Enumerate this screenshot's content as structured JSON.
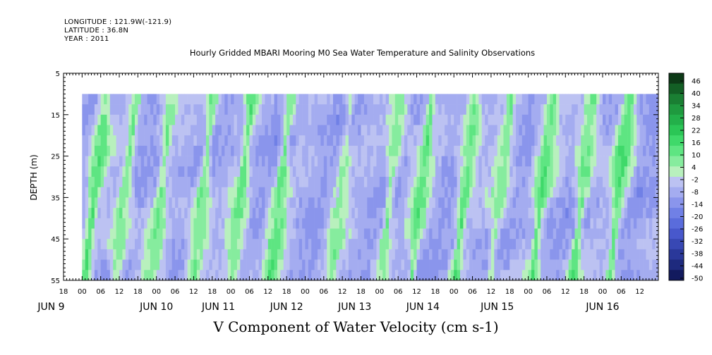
{
  "header": {
    "longitude": "LONGITUDE : 121.9W(-121.9)",
    "latitude": "LATITUDE : 36.8N",
    "year": "YEAR : 2011"
  },
  "chart_data": {
    "type": "heatmap",
    "title": "Hourly Gridded MBARI Mooring M0 Sea Water Temperature and Salinity Observations",
    "xlabel": "V Component of Water Velocity (cm s-1)",
    "ylabel": "DEPTH (m)",
    "ylim": [
      55,
      5
    ],
    "y_ticks": [
      5,
      15,
      25,
      35,
      45,
      55
    ],
    "data_depth_range": [
      10,
      55
    ],
    "x_start": "JUN 8 18:00",
    "x_end": "JUN 16 18:00",
    "data_time_start": "JUN 9 00:00",
    "hour_tick_labels": [
      "18",
      "00",
      "06",
      "12",
      "18",
      "00",
      "06",
      "12",
      "18",
      "00",
      "06",
      "12",
      "18",
      "00",
      "06",
      "12",
      "18",
      "00",
      "06",
      "12",
      "18",
      "00",
      "06",
      "12",
      "18",
      "00",
      "06",
      "12",
      "18",
      "00",
      "06",
      "12"
    ],
    "day_labels": [
      {
        "label": "JUN  9",
        "day": 9
      },
      {
        "label": "JUN 10",
        "day": 10
      },
      {
        "label": "JUN 11",
        "day": 11
      },
      {
        "label": "JUN 12",
        "day": 12
      },
      {
        "label": "JUN 13",
        "day": 13
      },
      {
        "label": "JUN 14",
        "day": 14
      },
      {
        "label": "JUN 15",
        "day": 15
      },
      {
        "label": "JUN 16",
        "day": 16
      }
    ],
    "colorbar": {
      "labels": [
        "46",
        "40",
        "34",
        "28",
        "22",
        "16",
        "10",
        "4",
        "-2",
        "-8",
        "-14",
        "-20",
        "-26",
        "-32",
        "-38",
        "-44",
        "-50"
      ],
      "colors": [
        "#0d3a17",
        "#135f25",
        "#1a7f33",
        "#1f9a3f",
        "#23b04a",
        "#2bc656",
        "#3fd96a",
        "#5ee582",
        "#86ec9e",
        "#b8f0bd",
        "#bcc2f2",
        "#a4acf0",
        "#8a95ec",
        "#7080e6",
        "#5a6cdc",
        "#4858cc",
        "#3848b4",
        "#2a389a",
        "#1e2a7e",
        "#121a5e"
      ]
    },
    "grid": false,
    "legend": "right colorbar",
    "band_peaks": [
      {
        "t": 10.5,
        "v": 12
      },
      {
        "t": 20.5,
        "v": 9
      },
      {
        "t": 32,
        "v": 7
      },
      {
        "t": 45.5,
        "v": 11
      },
      {
        "t": 58,
        "v": 10
      },
      {
        "t": 70.5,
        "v": 11
      },
      {
        "t": 90,
        "v": 6
      },
      {
        "t": 106,
        "v": 9
      },
      {
        "t": 116,
        "v": 9
      },
      {
        "t": 130,
        "v": 12
      },
      {
        "t": 141.5,
        "v": 7
      },
      {
        "t": 155,
        "v": 10
      },
      {
        "t": 168,
        "v": 13
      },
      {
        "t": 180,
        "v": 12
      }
    ],
    "band_slope_hours_per_m": -0.15,
    "background_value": -6
  }
}
